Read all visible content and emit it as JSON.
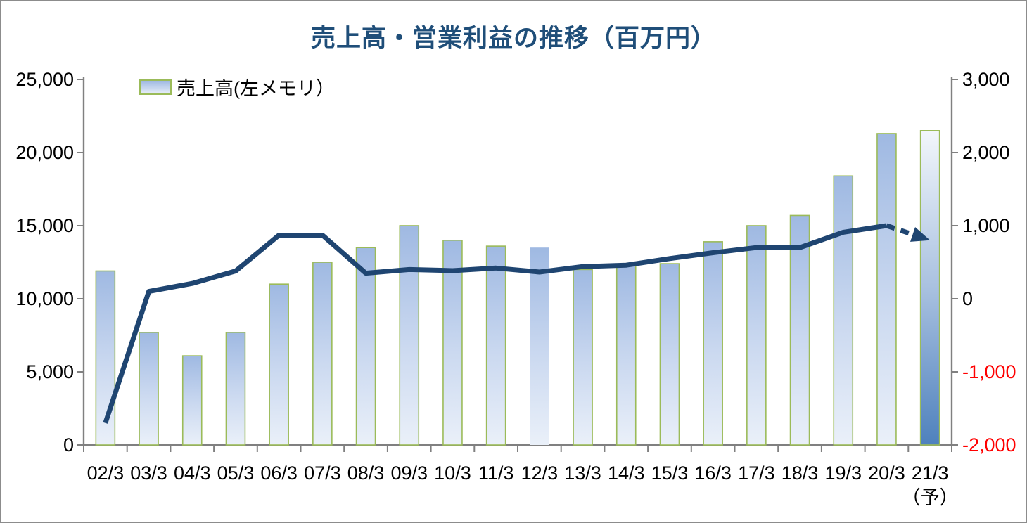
{
  "title": "売上高・営業利益の推移（百万円）",
  "legend": {
    "items": [
      {
        "label": "売上高(左メモリ）"
      }
    ]
  },
  "chart_data": {
    "type": "combo-bar-line",
    "title": "売上高・営業利益の推移（百万円）",
    "categories": [
      "02/3",
      "03/3",
      "04/3",
      "05/3",
      "06/3",
      "07/3",
      "08/3",
      "09/3",
      "10/3",
      "11/3",
      "12/3",
      "13/3",
      "14/3",
      "15/3",
      "16/3",
      "17/3",
      "18/3",
      "19/3",
      "20/3",
      "21/3"
    ],
    "last_category_note": "（予）",
    "series": [
      {
        "name": "売上高(左メモリ）",
        "type": "bar",
        "axis": "left",
        "values": [
          11900,
          7700,
          6100,
          7700,
          11000,
          12500,
          13500,
          15000,
          14000,
          13600,
          13500,
          12000,
          12300,
          12400,
          13900,
          15000,
          15700,
          18400,
          21300,
          21500
        ],
        "last_is_forecast": true
      },
      {
        "name": null,
        "type": "line",
        "axis": "right",
        "values": [
          -1700,
          100,
          210,
          380,
          870,
          870,
          350,
          400,
          385,
          420,
          365,
          440,
          460,
          550,
          630,
          700,
          700,
          910,
          1000,
          800
        ],
        "last_is_forecast": true,
        "forecast_style": "dashed-arrow"
      }
    ],
    "left_axis": {
      "min": 0,
      "max": 25000,
      "tick_step": 5000,
      "tick_labels": [
        "0",
        "5,000",
        "10,000",
        "15,000",
        "20,000",
        "25,000"
      ]
    },
    "right_axis": {
      "min": -2000,
      "max": 3000,
      "tick_step": 1000,
      "tick_labels": [
        "-2,000",
        "-1,000",
        "0",
        "1,000",
        "2,000",
        "3,000"
      ]
    },
    "grid": false,
    "legend_position": "top-left",
    "unbordered_bar_index": 10
  },
  "colors": {
    "title": "#1F4E79",
    "line": "#1F4571",
    "bar_border": "#9BBB59",
    "bar_top": "#9FB9E2",
    "bar_bottom": "#EAF0F9",
    "forecast_top": "#F2F6FB",
    "forecast_mid": "#A9C1E0",
    "forecast_bottom": "#4E81BD",
    "axis": "#808080",
    "tick_text": "#000000",
    "negative_tick_text": "#FF0000"
  }
}
